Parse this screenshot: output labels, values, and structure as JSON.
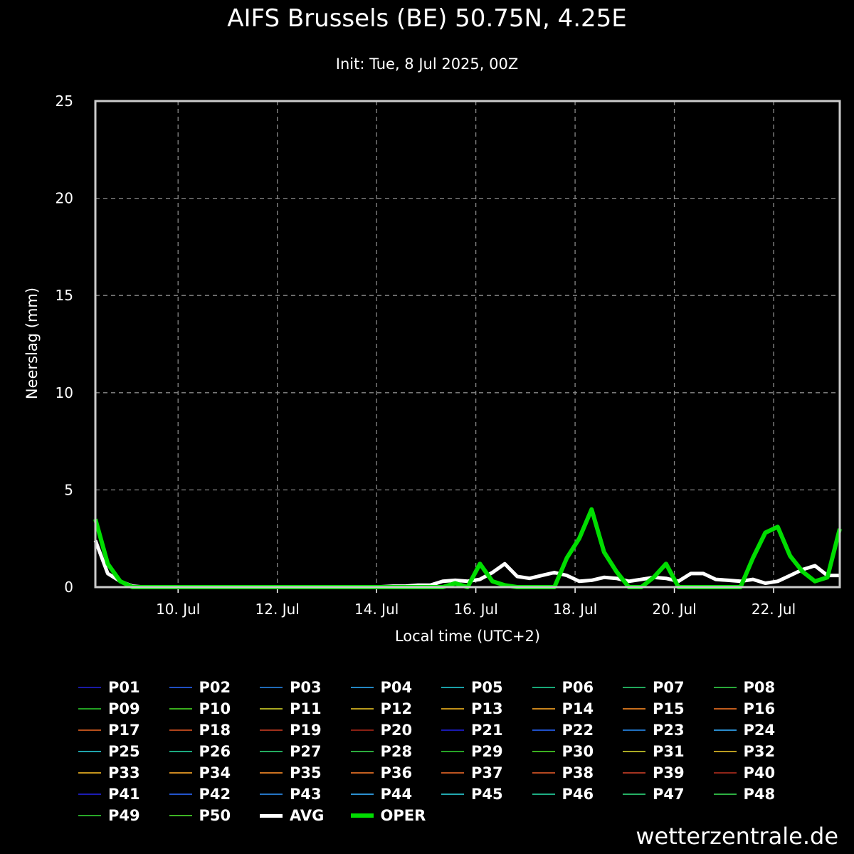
{
  "header": {
    "title": "AIFS Brussels (BE) 50.75N, 4.25E",
    "subtitle": "Init: Tue, 8 Jul 2025, 00Z"
  },
  "watermark": "wetterzentrale.de",
  "chart_data": {
    "type": "line",
    "title": "AIFS Brussels (BE) 50.75N, 4.25E",
    "subtitle": "Init: Tue, 8 Jul 2025, 00Z",
    "xlabel": "Local time (UTC+2)",
    "ylabel": "Neerslag (mm)",
    "xlim": [
      "2025-07-08T08:00",
      "2025-07-23T08:00"
    ],
    "ylim": [
      0,
      25
    ],
    "yticks": [
      0,
      5,
      10,
      15,
      20,
      25
    ],
    "xticks": [
      {
        "date": "2025-07-10T00:00",
        "label": "10. Jul"
      },
      {
        "date": "2025-07-12T00:00",
        "label": "12. Jul"
      },
      {
        "date": "2025-07-14T00:00",
        "label": "14. Jul"
      },
      {
        "date": "2025-07-16T00:00",
        "label": "16. Jul"
      },
      {
        "date": "2025-07-18T00:00",
        "label": "18. Jul"
      },
      {
        "date": "2025-07-20T00:00",
        "label": "20. Jul"
      },
      {
        "date": "2025-07-22T00:00",
        "label": "22. Jul"
      }
    ],
    "grid": true,
    "legend_position": "bottom",
    "x": [
      "2025-07-08T08:00",
      "2025-07-08T14:00",
      "2025-07-08T20:00",
      "2025-07-09T02:00",
      "2025-07-09T08:00",
      "2025-07-09T14:00",
      "2025-07-09T20:00",
      "2025-07-10T02:00",
      "2025-07-10T08:00",
      "2025-07-10T14:00",
      "2025-07-10T20:00",
      "2025-07-11T02:00",
      "2025-07-11T08:00",
      "2025-07-11T14:00",
      "2025-07-11T20:00",
      "2025-07-12T02:00",
      "2025-07-12T08:00",
      "2025-07-12T14:00",
      "2025-07-12T20:00",
      "2025-07-13T02:00",
      "2025-07-13T08:00",
      "2025-07-13T14:00",
      "2025-07-13T20:00",
      "2025-07-14T02:00",
      "2025-07-14T08:00",
      "2025-07-14T14:00",
      "2025-07-14T20:00",
      "2025-07-15T02:00",
      "2025-07-15T08:00",
      "2025-07-15T14:00",
      "2025-07-15T20:00",
      "2025-07-16T02:00",
      "2025-07-16T08:00",
      "2025-07-16T14:00",
      "2025-07-16T20:00",
      "2025-07-17T02:00",
      "2025-07-17T08:00",
      "2025-07-17T14:00",
      "2025-07-17T20:00",
      "2025-07-18T02:00",
      "2025-07-18T08:00",
      "2025-07-18T14:00",
      "2025-07-18T20:00",
      "2025-07-19T02:00",
      "2025-07-19T08:00",
      "2025-07-19T14:00",
      "2025-07-19T20:00",
      "2025-07-20T02:00",
      "2025-07-20T08:00",
      "2025-07-20T14:00",
      "2025-07-20T20:00",
      "2025-07-21T02:00",
      "2025-07-21T08:00",
      "2025-07-21T14:00",
      "2025-07-21T20:00",
      "2025-07-22T02:00",
      "2025-07-22T08:00",
      "2025-07-22T14:00",
      "2025-07-22T20:00",
      "2025-07-23T02:00",
      "2025-07-23T08:00"
    ],
    "series": [
      {
        "name": "AVG",
        "color": "#ffffff",
        "width": 5,
        "values": [
          2.4,
          0.7,
          0.3,
          0.05,
          0,
          0,
          0,
          0,
          0,
          0,
          0,
          0,
          0,
          0,
          0,
          0,
          0,
          0,
          0,
          0,
          0,
          0,
          0,
          0.02,
          0.05,
          0.05,
          0.1,
          0.1,
          0.3,
          0.35,
          0.3,
          0.4,
          0.75,
          1.2,
          0.55,
          0.45,
          0.6,
          0.75,
          0.6,
          0.3,
          0.35,
          0.5,
          0.45,
          0.3,
          0.4,
          0.5,
          0.45,
          0.3,
          0.7,
          0.7,
          0.4,
          0.35,
          0.3,
          0.4,
          0.2,
          0.3,
          0.6,
          0.9,
          1.1,
          0.6,
          0.6
        ]
      },
      {
        "name": "OPER",
        "color": "#00dd00",
        "width": 6,
        "values": [
          3.5,
          1.2,
          0.3,
          0,
          0,
          0,
          0,
          0,
          0,
          0,
          0,
          0,
          0,
          0,
          0,
          0,
          0,
          0,
          0,
          0,
          0,
          0,
          0,
          0,
          0,
          0,
          0,
          0,
          0,
          0.2,
          0,
          1.2,
          0.3,
          0.1,
          0,
          0,
          0,
          0,
          1.5,
          2.5,
          4,
          1.8,
          0.8,
          0,
          0,
          0.5,
          1.2,
          0,
          0,
          0,
          0,
          0,
          0,
          1.5,
          2.8,
          3.1,
          1.6,
          0.8,
          0.3,
          0.5,
          3.0
        ]
      }
    ],
    "ensemble_members": [
      {
        "name": "P01",
        "color": "#1a1aa6"
      },
      {
        "name": "P02",
        "color": "#1f4fc4"
      },
      {
        "name": "P03",
        "color": "#1f6bb8"
      },
      {
        "name": "P04",
        "color": "#2487c4"
      },
      {
        "name": "P05",
        "color": "#1aa0a8"
      },
      {
        "name": "P06",
        "color": "#18a878"
      },
      {
        "name": "P07",
        "color": "#22a85c"
      },
      {
        "name": "P08",
        "color": "#2aa83a"
      },
      {
        "name": "P09",
        "color": "#22a022"
      },
      {
        "name": "P10",
        "color": "#3aae1c"
      },
      {
        "name": "P11",
        "color": "#a8a820"
      },
      {
        "name": "P12",
        "color": "#b89a1c"
      },
      {
        "name": "P13",
        "color": "#c09018"
      },
      {
        "name": "P14",
        "color": "#c8841c"
      },
      {
        "name": "P15",
        "color": "#c86e1c"
      },
      {
        "name": "P16",
        "color": "#c05c1c"
      },
      {
        "name": "P17",
        "color": "#b8501c"
      },
      {
        "name": "P18",
        "color": "#b0441c"
      },
      {
        "name": "P19",
        "color": "#a0301c"
      },
      {
        "name": "P20",
        "color": "#8a2014"
      },
      {
        "name": "P21",
        "color": "#1a1ab0"
      },
      {
        "name": "P22",
        "color": "#1f50c8"
      },
      {
        "name": "P23",
        "color": "#2070c0"
      },
      {
        "name": "P24",
        "color": "#2a8ccc"
      },
      {
        "name": "P25",
        "color": "#1fa4ac"
      },
      {
        "name": "P26",
        "color": "#1caa80"
      },
      {
        "name": "P27",
        "color": "#24ac60"
      },
      {
        "name": "P28",
        "color": "#2cac3e"
      },
      {
        "name": "P29",
        "color": "#26a426"
      },
      {
        "name": "P30",
        "color": "#3cb020"
      },
      {
        "name": "P31",
        "color": "#aaaa24"
      },
      {
        "name": "P32",
        "color": "#ba9c20"
      },
      {
        "name": "P33",
        "color": "#c4941c"
      },
      {
        "name": "P34",
        "color": "#cc8820"
      },
      {
        "name": "P35",
        "color": "#cc7220"
      },
      {
        "name": "P36",
        "color": "#c46020"
      },
      {
        "name": "P37",
        "color": "#bc5420"
      },
      {
        "name": "P38",
        "color": "#b44820"
      },
      {
        "name": "P39",
        "color": "#a43420"
      },
      {
        "name": "P40",
        "color": "#8e2418"
      },
      {
        "name": "P41",
        "color": "#1c1cb4"
      },
      {
        "name": "P42",
        "color": "#2254cc"
      },
      {
        "name": "P43",
        "color": "#2474c4"
      },
      {
        "name": "P44",
        "color": "#2c90d0"
      },
      {
        "name": "P45",
        "color": "#22a8b0"
      },
      {
        "name": "P46",
        "color": "#1eae84"
      },
      {
        "name": "P47",
        "color": "#26b064"
      },
      {
        "name": "P48",
        "color": "#2eb042"
      },
      {
        "name": "P49",
        "color": "#28a828"
      },
      {
        "name": "P50",
        "color": "#3eb424"
      }
    ]
  }
}
